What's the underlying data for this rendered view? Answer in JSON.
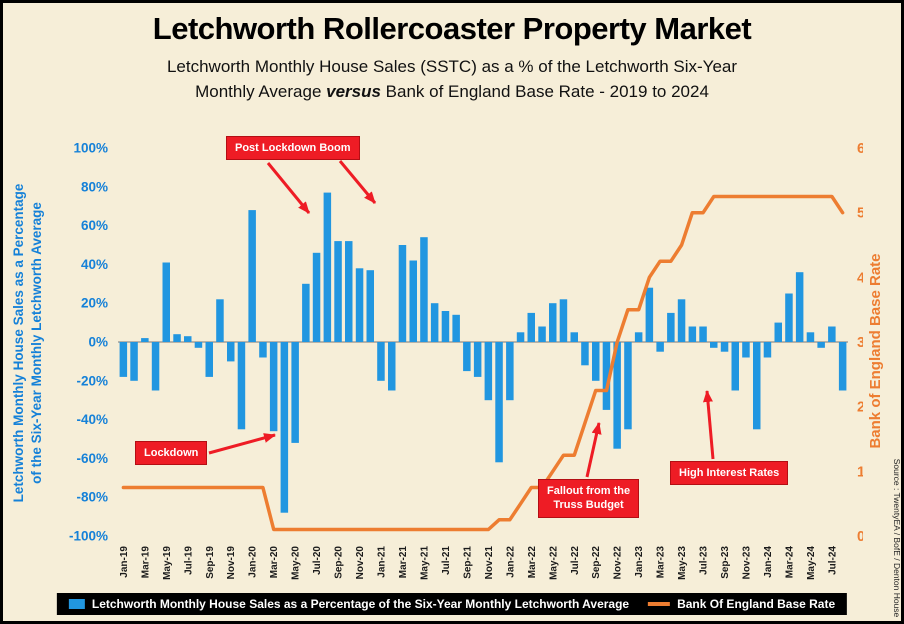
{
  "title": "Letchworth Rollercoaster Property Market",
  "subtitle": {
    "line1": "Letchworth Monthly House Sales (SSTC) as a % of the Letchworth Six-Year",
    "line2_pre": "Monthly Average ",
    "line2_versus": "versus",
    "line2_post": " Bank of England Base Rate - 2019 to 2024"
  },
  "left_axis": {
    "title_line1": "Letchworth Monthly House Sales as a Percentage",
    "title_line2": "of the Six-Year Monthly Letchworth Average",
    "ticks": [
      "100%",
      "80%",
      "60%",
      "40%",
      "20%",
      "0%",
      "-20%",
      "-40%",
      "-60%",
      "-80%",
      "-100%"
    ]
  },
  "right_axis": {
    "title": "Bank of England Base Rate",
    "ticks": [
      "6",
      "5",
      "4",
      "3",
      "2",
      "1",
      "0"
    ]
  },
  "annotations": {
    "boom": {
      "label": "Post Lockdown Boom"
    },
    "lockdown": {
      "label": "Lockdown"
    },
    "truss": {
      "line1": "Fallout from the",
      "line2": "Truss Budget"
    },
    "rates": {
      "label": "High Interest Rates"
    }
  },
  "legend": {
    "series1": "Letchworth Monthly House Sales as a Percentage of the Six-Year Monthly Letchworth Average",
    "series2": "Bank Of England Base Rate"
  },
  "source": "Source : TwentyEA / BofE / Denton House",
  "colors": {
    "bar": "#2196E0",
    "line": "#ED7D31",
    "axis_blue": "#1581D8",
    "red": "#EE1C25",
    "background": "#F6EED8",
    "legend_bg": "#000000"
  },
  "chart_data": {
    "type": "bar",
    "x": [
      "Jan-19",
      "Feb-19",
      "Mar-19",
      "Apr-19",
      "May-19",
      "Jun-19",
      "Jul-19",
      "Aug-19",
      "Sep-19",
      "Oct-19",
      "Nov-19",
      "Dec-19",
      "Jan-20",
      "Feb-20",
      "Mar-20",
      "Apr-20",
      "May-20",
      "Jun-20",
      "Jul-20",
      "Aug-20",
      "Sep-20",
      "Oct-20",
      "Nov-20",
      "Dec-20",
      "Jan-21",
      "Feb-21",
      "Mar-21",
      "Apr-21",
      "May-21",
      "Jun-21",
      "Jul-21",
      "Aug-21",
      "Sep-21",
      "Oct-21",
      "Nov-21",
      "Dec-21",
      "Jan-22",
      "Feb-22",
      "Mar-22",
      "Apr-22",
      "May-22",
      "Jun-22",
      "Jul-22",
      "Aug-22",
      "Sep-22",
      "Oct-22",
      "Nov-22",
      "Dec-22",
      "Jan-23",
      "Feb-23",
      "Mar-23",
      "Apr-23",
      "May-23",
      "Jun-23",
      "Jul-23",
      "Aug-23",
      "Sep-23",
      "Oct-23",
      "Nov-23",
      "Dec-23",
      "Jan-24",
      "Feb-24",
      "Mar-24",
      "Apr-24",
      "May-24",
      "Jun-24",
      "Jul-24",
      "Aug-24"
    ],
    "x_tick_every": 2,
    "series": [
      {
        "name": "Letchworth Monthly House Sales as a Percentage of the Six-Year Monthly Letchworth Average",
        "type": "bar",
        "axis": "left",
        "unit": "%",
        "values": [
          -18,
          -20,
          2,
          -25,
          41,
          4,
          3,
          -3,
          -18,
          22,
          -10,
          -45,
          68,
          -8,
          -46,
          -88,
          -52,
          30,
          46,
          77,
          52,
          52,
          38,
          37,
          -20,
          -25,
          50,
          42,
          54,
          20,
          16,
          14,
          -15,
          -18,
          -30,
          -62,
          -30,
          5,
          15,
          8,
          20,
          22,
          5,
          -12,
          -20,
          -35,
          -55,
          -45,
          5,
          28,
          -5,
          15,
          22,
          8,
          8,
          -3,
          -5,
          -25,
          -8,
          -45,
          -8,
          10,
          25,
          36,
          5,
          -3,
          8,
          -25
        ]
      },
      {
        "name": "Bank Of England Base Rate",
        "type": "line",
        "axis": "right",
        "unit": "",
        "values": [
          0.75,
          0.75,
          0.75,
          0.75,
          0.75,
          0.75,
          0.75,
          0.75,
          0.75,
          0.75,
          0.75,
          0.75,
          0.75,
          0.75,
          0.1,
          0.1,
          0.1,
          0.1,
          0.1,
          0.1,
          0.1,
          0.1,
          0.1,
          0.1,
          0.1,
          0.1,
          0.1,
          0.1,
          0.1,
          0.1,
          0.1,
          0.1,
          0.1,
          0.1,
          0.1,
          0.25,
          0.25,
          0.5,
          0.75,
          0.75,
          1,
          1.25,
          1.25,
          1.75,
          2.25,
          2.25,
          3,
          3.5,
          3.5,
          4,
          4.25,
          4.25,
          4.5,
          5,
          5,
          5.25,
          5.25,
          5.25,
          5.25,
          5.25,
          5.25,
          5.25,
          5.25,
          5.25,
          5.25,
          5.25,
          5.25,
          5
        ]
      }
    ],
    "left_ylim": [
      -100,
      100
    ],
    "right_ylim": [
      0,
      6
    ],
    "grid": false,
    "legend_position": "bottom"
  }
}
